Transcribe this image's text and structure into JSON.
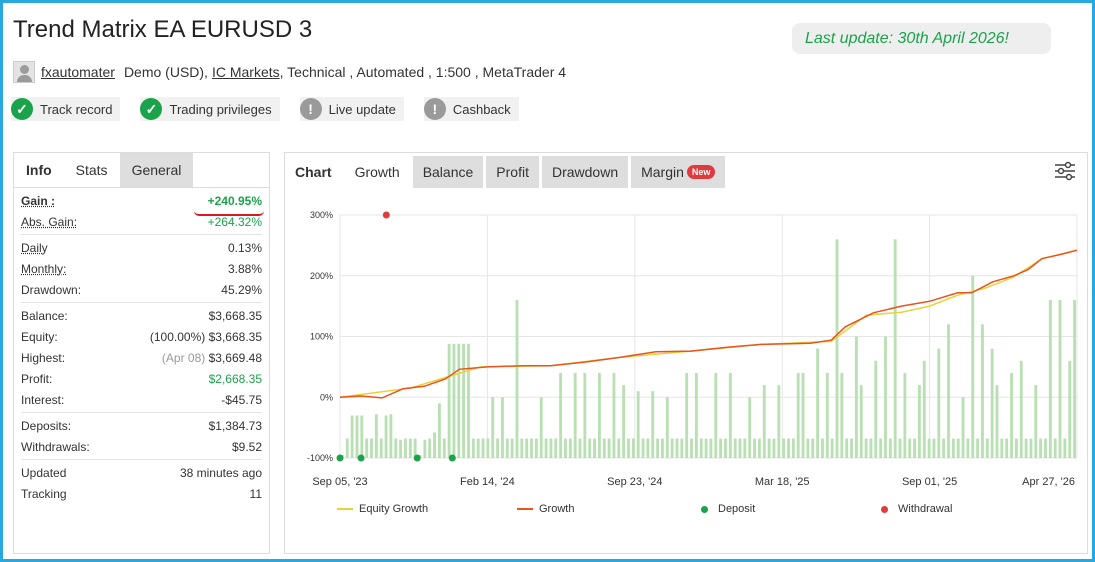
{
  "header": {
    "title": "Trend Matrix EA EURUSD 3",
    "last_update": "Last update: 30th April 2026!"
  },
  "account": {
    "user": "fxautomater",
    "type": "Demo (USD),",
    "broker": "IC Markets",
    "details": ", Technical , Automated , 1:500 , MetaTrader 4"
  },
  "badges": [
    {
      "label": "Track record",
      "icon": "check-icon",
      "status": "ok"
    },
    {
      "label": "Trading privileges",
      "icon": "check-icon",
      "status": "ok"
    },
    {
      "label": "Live update",
      "icon": "exclamation-icon",
      "status": "warn"
    },
    {
      "label": "Cashback",
      "icon": "exclamation-icon",
      "status": "warn"
    }
  ],
  "left_tabs": [
    "Info",
    "Stats",
    "General"
  ],
  "stats": {
    "gain_label": "Gain :",
    "gain_value": "+240.95%",
    "abs_gain_label": "Abs. Gain:",
    "abs_gain_value": "+264.32%",
    "daily_label": "Daily",
    "daily_value": "0.13%",
    "monthly_label": "Monthly:",
    "monthly_value": "3.88%",
    "drawdown_label": "Drawdown:",
    "drawdown_value": "45.29%",
    "balance_label": "Balance:",
    "balance_value": "$3,668.35",
    "equity_label": "Equity:",
    "equity_pct": "(100.00%)",
    "equity_value": "$3,668.35",
    "highest_label": "Highest:",
    "highest_date": "(Apr 08)",
    "highest_value": "$3,669.48",
    "profit_label": "Profit:",
    "profit_value": "$2,668.35",
    "interest_label": "Interest:",
    "interest_value": "-$45.75",
    "deposits_label": "Deposits:",
    "deposits_value": "$1,384.73",
    "withdrawals_label": "Withdrawals:",
    "withdrawals_value": "$9.52",
    "updated_label": "Updated",
    "updated_value": "38 minutes ago",
    "tracking_label": "Tracking",
    "tracking_value": "11"
  },
  "chart_tabs": {
    "chart": "Chart",
    "growth": "Growth",
    "balance": "Balance",
    "profit": "Profit",
    "drawdown": "Drawdown",
    "margin": "Margin",
    "new_badge": "New"
  },
  "colors": {
    "accent_green": "#1aa34a",
    "growth_line": "#e8541e",
    "equity_line": "#e8d23a",
    "bars": "#b9e0b3",
    "deposit": "#1aa34a",
    "withdrawal": "#e03c3c",
    "frame": "#29a8e0"
  },
  "chart_data": {
    "type": "line",
    "ylim": [
      -100,
      300
    ],
    "yticks": [
      "300%",
      "200%",
      "100%",
      "0%",
      "-100%"
    ],
    "xticks": [
      "Sep 05, '23",
      "Feb 14, '24",
      "Sep 23, '24",
      "Mar 18, '25",
      "Sep 01, '25",
      "Apr 27, '26"
    ],
    "series": [
      {
        "name": "Growth",
        "points": [
          [
            0,
            0
          ],
          [
            0.03,
            2
          ],
          [
            0.06,
            -1
          ],
          [
            0.09,
            14
          ],
          [
            0.12,
            18
          ],
          [
            0.15,
            30
          ],
          [
            0.17,
            46
          ],
          [
            0.21,
            50
          ],
          [
            0.26,
            52
          ],
          [
            0.3,
            52
          ],
          [
            0.35,
            58
          ],
          [
            0.4,
            66
          ],
          [
            0.45,
            75
          ],
          [
            0.5,
            76
          ],
          [
            0.55,
            82
          ],
          [
            0.6,
            87
          ],
          [
            0.64,
            88
          ],
          [
            0.67,
            89
          ],
          [
            0.7,
            94
          ],
          [
            0.72,
            116
          ],
          [
            0.76,
            139
          ],
          [
            0.8,
            150
          ],
          [
            0.84,
            158
          ],
          [
            0.88,
            172
          ],
          [
            0.9,
            172
          ],
          [
            0.93,
            190
          ],
          [
            0.96,
            200
          ],
          [
            0.98,
            210
          ],
          [
            1.0,
            228
          ],
          [
            1.03,
            236
          ],
          [
            1.05,
            242
          ]
        ]
      },
      {
        "name": "Equity Growth",
        "points": [
          [
            0,
            0
          ],
          [
            0.1,
            15
          ],
          [
            0.2,
            50
          ],
          [
            0.3,
            52
          ],
          [
            0.4,
            66
          ],
          [
            0.5,
            76
          ],
          [
            0.6,
            87
          ],
          [
            0.7,
            92
          ],
          [
            0.75,
            135
          ],
          [
            0.8,
            140
          ],
          [
            0.84,
            150
          ],
          [
            0.88,
            168
          ],
          [
            0.92,
            180
          ],
          [
            0.96,
            198
          ],
          [
            1.0,
            228
          ],
          [
            1.05,
            242
          ]
        ]
      }
    ],
    "deposits": [
      [
        0.0,
        -100
      ],
      [
        0.03,
        -100
      ],
      [
        0.11,
        -100
      ],
      [
        0.16,
        -100
      ]
    ],
    "withdrawals": [
      [
        0.066,
        300
      ]
    ],
    "bars": [
      -95,
      -68,
      -30,
      -30,
      -95,
      -68,
      -68,
      -70,
      -68,
      -30,
      -28,
      -68,
      -70,
      -68,
      -68,
      -68,
      -95,
      -70,
      -68,
      -58,
      -69,
      -68,
      -70,
      -68,
      -68,
      -68,
      -68,
      -68,
      -68,
      -68,
      -68,
      -68,
      -68,
      -68,
      -68,
      -68,
      -68,
      -68,
      -68,
      -68,
      -68,
      -68,
      -68,
      -68,
      -68,
      -68,
      -68,
      -68,
      -68,
      -68,
      -68,
      -68,
      -68,
      -68,
      -68,
      -68,
      -68,
      -68,
      -68,
      -68,
      -68,
      -68,
      -68,
      -68,
      -68,
      -68,
      -68,
      -68,
      -68,
      -68,
      -68,
      -68,
      -68,
      -68,
      -68,
      -68,
      -68,
      -68,
      -68,
      -68,
      -68,
      -68,
      -68,
      -68,
      -68,
      -68,
      -68,
      -68,
      -68,
      -68,
      -68,
      -68,
      -68,
      -68,
      -68,
      -68,
      -68,
      -68,
      -68,
      -68,
      -68,
      -68,
      -68,
      -68,
      -68,
      -68,
      -68,
      -68,
      -68,
      -68,
      -68,
      -68,
      -68,
      -68,
      -68,
      -68,
      -68,
      -68,
      -68,
      -68,
      -68,
      -68,
      -68,
      -68,
      -68,
      -68,
      -68,
      -68,
      -68,
      -68,
      -68,
      -68,
      -68,
      -68,
      -68,
      -68,
      -68,
      -68,
      -68,
      -68,
      -68,
      -68,
      -68,
      -68,
      -68,
      -68,
      -68,
      -68,
      -68,
      -68,
      -68,
      -68
    ],
    "legend": [
      "Equity Growth",
      "Growth",
      "Deposit",
      "Withdrawal"
    ]
  }
}
